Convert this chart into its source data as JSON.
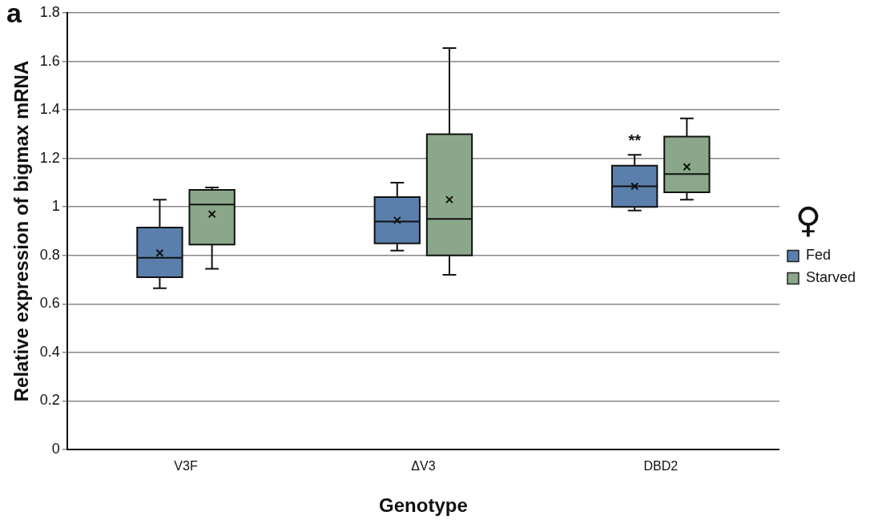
{
  "chart_data": {
    "type": "box",
    "xlabel": "Genotype",
    "ylabel": "Relative expression of bigmax mRNA",
    "categories": [
      "V3F",
      "ΔV3",
      "DBD2"
    ],
    "series": [
      {
        "name": "Fed",
        "color": "#5a7fad",
        "boxes": [
          {
            "low": 0.665,
            "q1": 0.71,
            "median": 0.79,
            "q3": 0.915,
            "high": 1.03,
            "mean": 0.81
          },
          {
            "low": 0.82,
            "q1": 0.85,
            "median": 0.94,
            "q3": 1.04,
            "high": 1.1,
            "mean": 0.945
          },
          {
            "low": 0.985,
            "q1": 1.0,
            "median": 1.085,
            "q3": 1.17,
            "high": 1.215,
            "mean": 1.085
          }
        ]
      },
      {
        "name": "Starved",
        "color": "#8aa889",
        "boxes": [
          {
            "low": 0.745,
            "q1": 0.845,
            "median": 1.01,
            "q3": 1.07,
            "high": 1.08,
            "mean": 0.97
          },
          {
            "low": 0.72,
            "q1": 0.8,
            "median": 0.95,
            "q3": 1.3,
            "high": 1.655,
            "mean": 1.03
          },
          {
            "low": 1.03,
            "q1": 1.06,
            "median": 1.135,
            "q3": 1.29,
            "high": 1.365,
            "mean": 1.165
          }
        ]
      }
    ],
    "ylim": [
      0,
      1.8
    ],
    "yticks": [
      0,
      0.2,
      0.4,
      0.6,
      0.8,
      1,
      1.2,
      1.4,
      1.6,
      1.8
    ],
    "grid": "y",
    "legend": "right",
    "annotations": [
      "a",
      {
        "text": "**",
        "x": "DBD2",
        "y": 1.27
      },
      "♀"
    ]
  }
}
